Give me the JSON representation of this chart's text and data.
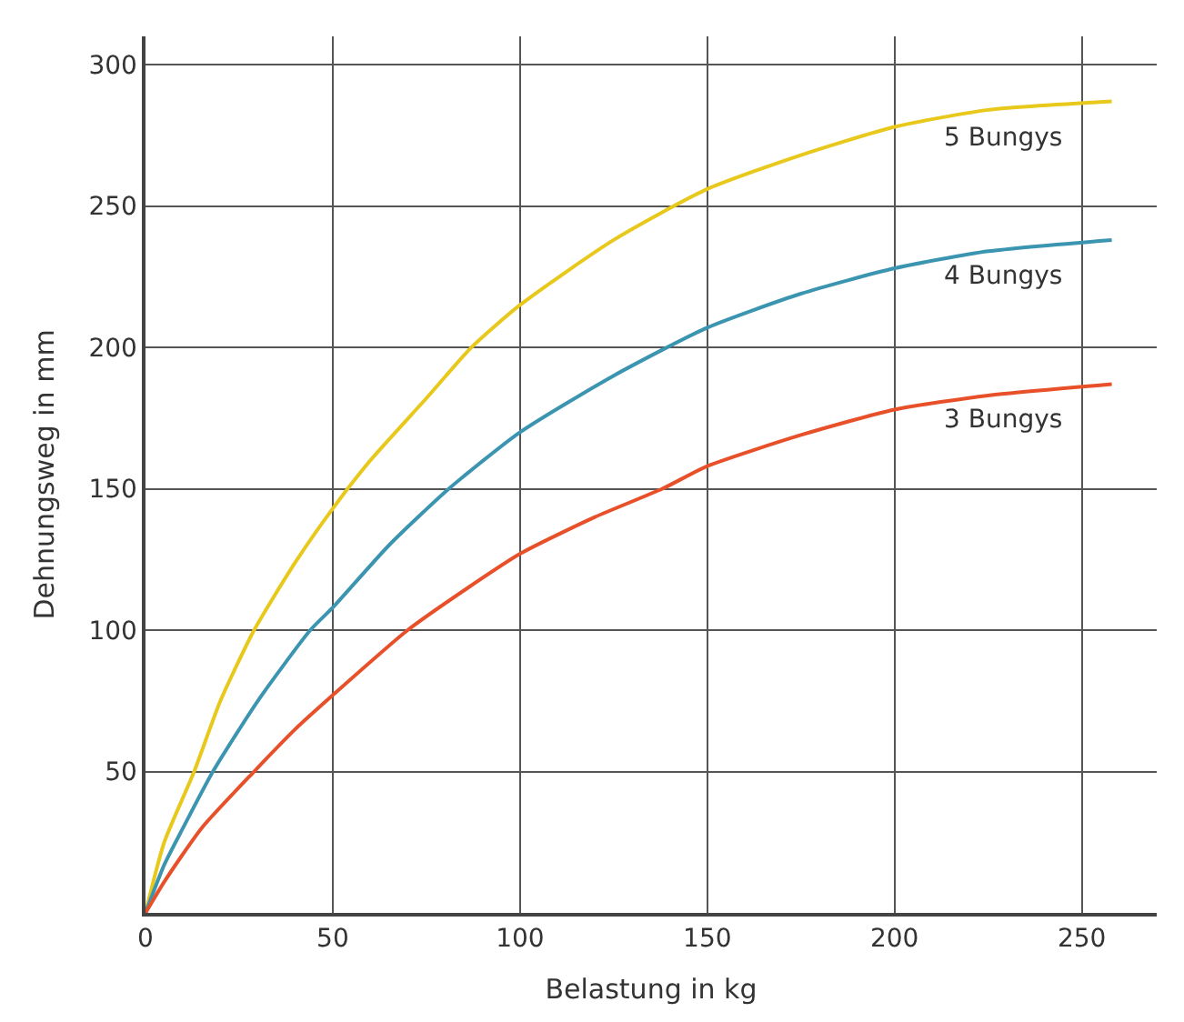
{
  "chart_data": {
    "type": "line",
    "xlabel": "Belastung in kg",
    "ylabel": "Dehnungsweg in mm",
    "xlim": [
      0,
      270
    ],
    "ylim": [
      0,
      310
    ],
    "xticks": [
      0,
      50,
      100,
      150,
      200,
      250
    ],
    "yticks": [
      50,
      100,
      150,
      200,
      250,
      300
    ],
    "grid": true,
    "legend": false,
    "marker": "none",
    "line_style": "solid",
    "series": [
      {
        "name": "5 Bungys",
        "color": "#e8c81a",
        "x": [
          0,
          5,
          13,
          20,
          29,
          40,
          50,
          60,
          75,
          87,
          100,
          125,
          150,
          175,
          200,
          225,
          258
        ],
        "values": [
          0,
          25,
          50,
          75,
          100,
          124,
          143,
          160,
          182,
          200,
          215,
          238,
          256,
          268,
          278,
          284,
          287
        ]
      },
      {
        "name": "4 Bungys",
        "color": "#3b95b0",
        "x": [
          0,
          5,
          10,
          18,
          30,
          44,
          50,
          65,
          81,
          100,
          125,
          150,
          175,
          200,
          225,
          258
        ],
        "values": [
          0,
          17,
          30,
          50,
          75,
          100,
          108,
          130,
          150,
          170,
          190,
          207,
          219,
          228,
          234,
          238
        ]
      },
      {
        "name": "3 Bungys",
        "color": "#e8502a",
        "x": [
          0,
          5,
          15,
          29,
          40,
          50,
          70,
          85,
          100,
          120,
          138,
          150,
          175,
          200,
          225,
          258
        ],
        "values": [
          0,
          11,
          30,
          50,
          65,
          77,
          100,
          114,
          127,
          140,
          150,
          158,
          169,
          178,
          183,
          187
        ]
      }
    ]
  }
}
